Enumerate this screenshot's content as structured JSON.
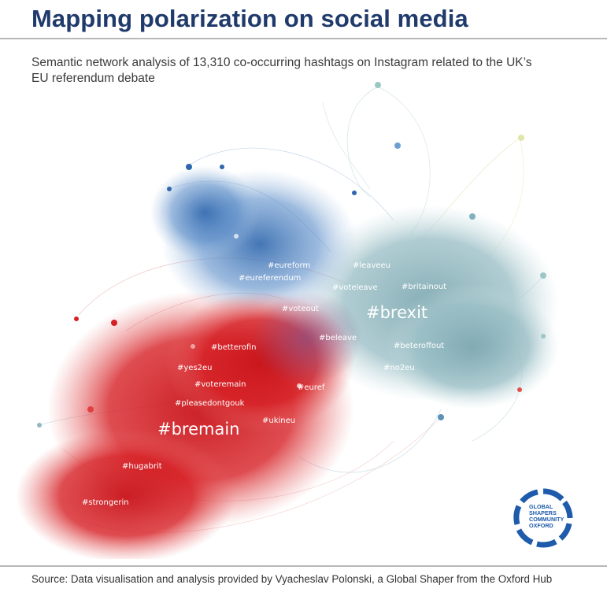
{
  "header": {
    "title": "Mapping polarization on social media",
    "subtitle": "Semantic network analysis of 13,310 co-occurring hashtags on Instagram related to the UK’s EU referendum debate"
  },
  "colors": {
    "title": "#1f3a6b",
    "remain_cluster": "#d62025",
    "leave_cluster": "#8fb8c0",
    "mixed_cluster": "#3f78b8",
    "logo_blue": "#1f5bab"
  },
  "network": {
    "hashtags": [
      {
        "label": "#brexit",
        "cluster": "leave"
      },
      {
        "label": "#bremain",
        "cluster": "remain"
      },
      {
        "label": "#eureform",
        "cluster": "mixed"
      },
      {
        "label": "#leaveeu",
        "cluster": "leave"
      },
      {
        "label": "#eureferendum",
        "cluster": "mixed"
      },
      {
        "label": "#voteleave",
        "cluster": "leave"
      },
      {
        "label": "#britainout",
        "cluster": "leave"
      },
      {
        "label": "#voteout",
        "cluster": "mixed"
      },
      {
        "label": "#beleave",
        "cluster": "leave"
      },
      {
        "label": "#beteroffout",
        "cluster": "leave"
      },
      {
        "label": "#betterofin",
        "cluster": "remain"
      },
      {
        "label": "#no2eu",
        "cluster": "leave"
      },
      {
        "label": "#yes2eu",
        "cluster": "remain"
      },
      {
        "label": "#voteremain",
        "cluster": "remain"
      },
      {
        "label": "#euref",
        "cluster": "mixed"
      },
      {
        "label": "#pleasedontgouk",
        "cluster": "remain"
      },
      {
        "label": "#ukineu",
        "cluster": "remain"
      },
      {
        "label": "#hugabrit",
        "cluster": "remain"
      },
      {
        "label": "#strongerin",
        "cluster": "remain"
      }
    ]
  },
  "logo": {
    "icon": "global-shapers-ring-icon",
    "lines": [
      "GLOBAL",
      "SHAPERS",
      "COMMUNITY",
      "OXFORD"
    ]
  },
  "footer": {
    "source": "Source: Data visualisation and analysis provided by Vyacheslav Polonski, a Global Shaper from the Oxford Hub"
  }
}
